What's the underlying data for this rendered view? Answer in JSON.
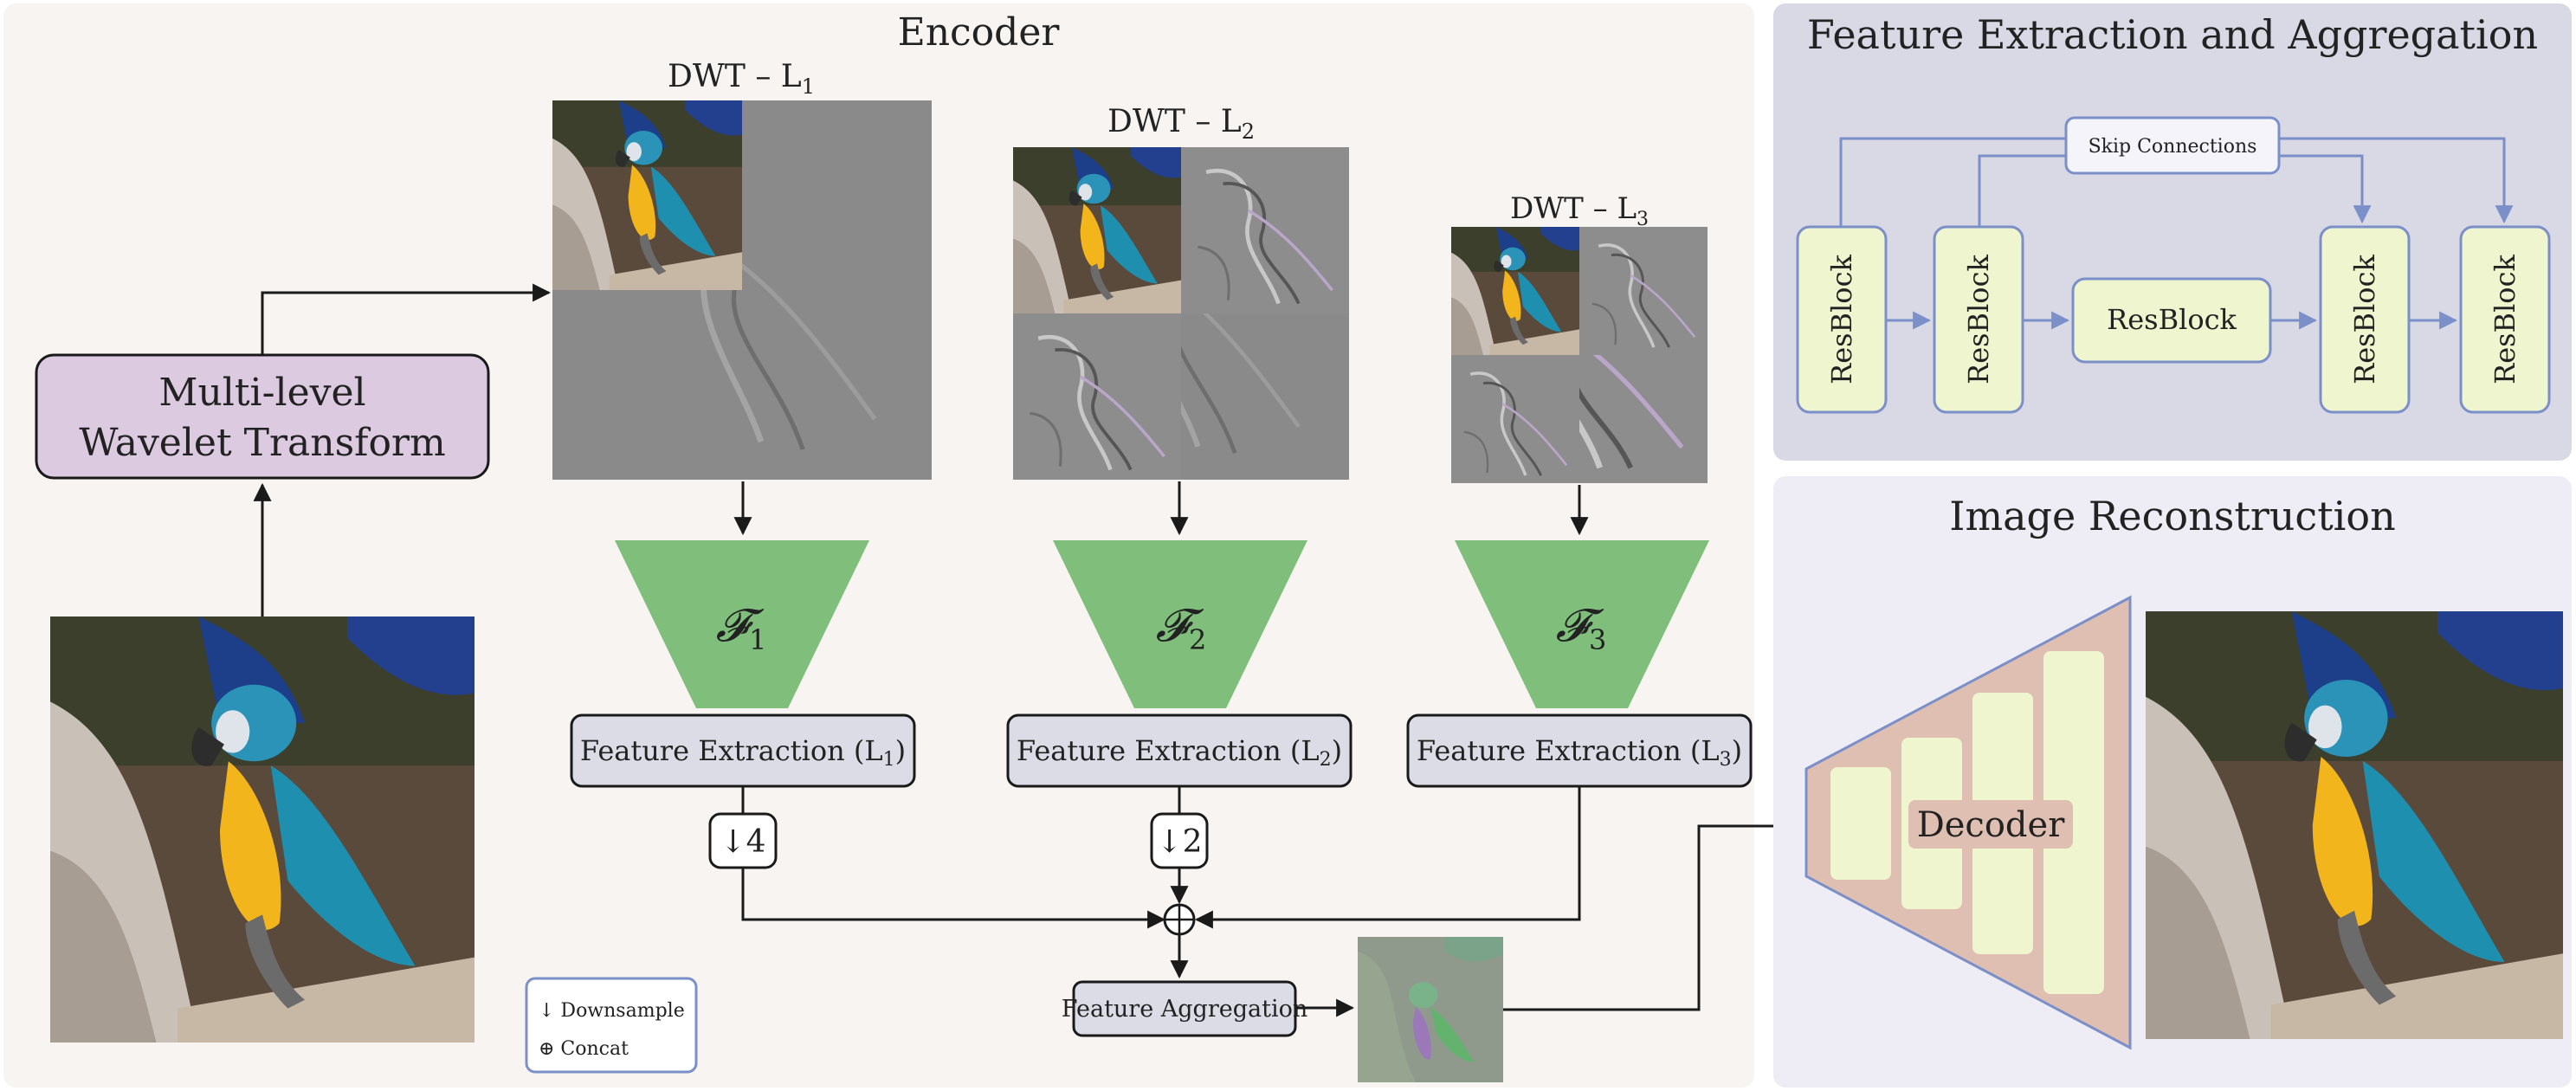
{
  "encoder": {
    "title": "Encoder",
    "transform_label_line1": "Multi-level",
    "transform_label_line2": "Wavelet Transform",
    "dwt_levels": [
      {
        "base": "DWT – L",
        "sub": "1"
      },
      {
        "base": "DWT – L",
        "sub": "2"
      },
      {
        "base": "DWT – L",
        "sub": "3"
      }
    ],
    "extractors": [
      {
        "symbol": "𝓕",
        "sub": "1",
        "label": "Feature Extraction (L",
        "label_sub": "1",
        "label_end": ")"
      },
      {
        "symbol": "𝓕",
        "sub": "2",
        "label": "Feature Extraction (L",
        "label_sub": "2",
        "label_end": ")"
      },
      {
        "symbol": "𝓕",
        "sub": "3",
        "label": "Feature Extraction (L",
        "label_sub": "3",
        "label_end": ")"
      }
    ],
    "downsample_factors": [
      "↓4",
      "↓2"
    ],
    "concat_symbol": "⊕",
    "aggregation_label": "Feature Aggregation",
    "legend": {
      "downsample": "↓ Downsample",
      "concat": "⊕ Concat"
    }
  },
  "fea_panel": {
    "title": "Feature Extraction and Aggregation",
    "skip_label": "Skip Connections",
    "resblocks": [
      "ResBlock",
      "ResBlock",
      "ResBlock",
      "ResBlock",
      "ResBlock"
    ]
  },
  "recon_panel": {
    "title": "Image Reconstruction",
    "decoder_label": "Decoder"
  },
  "colors": {
    "encoder_bg": "#f8f4f1",
    "fea_bg": "#d9d9e6",
    "recon_bg": "#eeedf5",
    "transform_fill": "#dccbe0",
    "trapezoid_green": "#7fbf7b",
    "label_box_fill": "#dcdce6",
    "resblock_fill": "#eef5cf",
    "decoder_fill": "#dfbfb1",
    "accent_blue": "#7b8fc8"
  }
}
